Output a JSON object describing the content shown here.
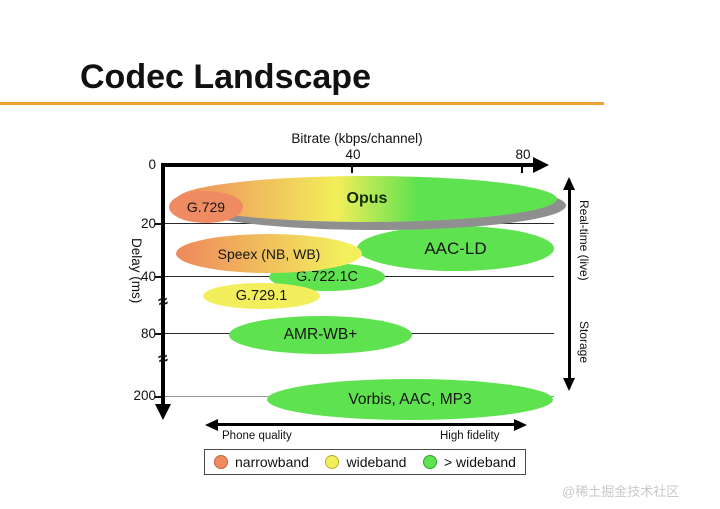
{
  "slide": {
    "title": "Codec Landscape",
    "accent_color": "#f0a133",
    "watermark": "@稀土掘金技术社区"
  },
  "chart": {
    "x_axis": {
      "title": "Bitrate (kbps/channel)",
      "ticks": [
        "40",
        "80"
      ]
    },
    "y_axis": {
      "title": "Delay (ms)",
      "ticks": [
        "0",
        "20",
        "40",
        "80",
        "200"
      ],
      "break_symbol": "≈"
    },
    "right_axis": {
      "top_label": "Real-time (live)",
      "bottom_label": "Storage"
    },
    "bottom_axis": {
      "left_label": "Phone quality",
      "right_label": "High fidelity"
    },
    "codecs": [
      {
        "label": "Opus"
      },
      {
        "label": "G.729"
      },
      {
        "label": "Speex (NB, WB)"
      },
      {
        "label": "AAC-LD"
      },
      {
        "label": "G.722.1C"
      },
      {
        "label": "G.729.1"
      },
      {
        "label": "AMR-WB+"
      },
      {
        "label": "Vorbis, AAC, MP3"
      }
    ],
    "legend": {
      "items": [
        {
          "label": "narrowband",
          "color": "#ee8a5e"
        },
        {
          "label": "wideband",
          "color": "#f2ee5c"
        },
        {
          "label": "> wideband",
          "color": "#5fe24f"
        }
      ]
    }
  },
  "chart_data": {
    "type": "scatter",
    "title": "Codec Landscape",
    "xlabel": "Bitrate (kbps/channel)",
    "ylabel": "Delay (ms)",
    "xlim": [
      0,
      85
    ],
    "x_ticks": [
      40,
      80
    ],
    "y_ticks": [
      0,
      20,
      40,
      80,
      200
    ],
    "y_axis_breaks": [
      [
        40,
        80
      ],
      [
        80,
        200
      ]
    ],
    "grid": "horizontal",
    "points": [
      {
        "label": "Opus",
        "bitrate_kbps": [
          3,
          82
        ],
        "delay_ms": [
          4,
          19
        ],
        "band": "narrowband-to->wideband",
        "fill": "gradient-orange-yellow-green",
        "shadow": true
      },
      {
        "label": "G.729",
        "bitrate_kbps": [
          2,
          17
        ],
        "delay_ms": [
          10,
          19
        ],
        "band": "narrowband",
        "fill": "#ee8a5e"
      },
      {
        "label": "Speex (NB, WB)",
        "bitrate_kbps": [
          3,
          42
        ],
        "delay_ms": [
          24,
          37
        ],
        "band": "narrowband-to-wideband",
        "fill": "gradient-orange-yellow"
      },
      {
        "label": "AAC-LD",
        "bitrate_kbps": [
          41,
          82
        ],
        "delay_ms": [
          21,
          38
        ],
        "band": ">wideband",
        "fill": "#5fe24f"
      },
      {
        "label": "G.722.1C",
        "bitrate_kbps": [
          23,
          47
        ],
        "delay_ms": [
          36,
          44
        ],
        "band": ">wideband",
        "fill": "#5fe24f"
      },
      {
        "label": "G.729.1",
        "bitrate_kbps": [
          9,
          33
        ],
        "delay_ms": [
          45,
          52
        ],
        "band": "wideband",
        "fill": "#f2ee5c"
      },
      {
        "label": "AMR-WB+",
        "bitrate_kbps": [
          14,
          52
        ],
        "delay_ms": [
          70,
          95
        ],
        "band": ">wideband",
        "fill": "#5fe24f"
      },
      {
        "label": "Vorbis, AAC, MP3",
        "bitrate_kbps": [
          22,
          82
        ],
        "delay_ms": [
          185,
          215
        ],
        "band": ">wideband",
        "fill": "#5fe24f"
      }
    ],
    "legend": [
      {
        "label": "narrowband",
        "color": "#ee8a5e"
      },
      {
        "label": "wideband",
        "color": "#f2ee5c"
      },
      {
        "label": "> wideband",
        "color": "#5fe24f"
      }
    ],
    "annotations": {
      "right_axis_arrow": [
        "Real-time (live)",
        "Storage"
      ],
      "bottom_axis_arrow": [
        "Phone quality",
        "High fidelity"
      ]
    },
    "legend_position": "bottom"
  }
}
